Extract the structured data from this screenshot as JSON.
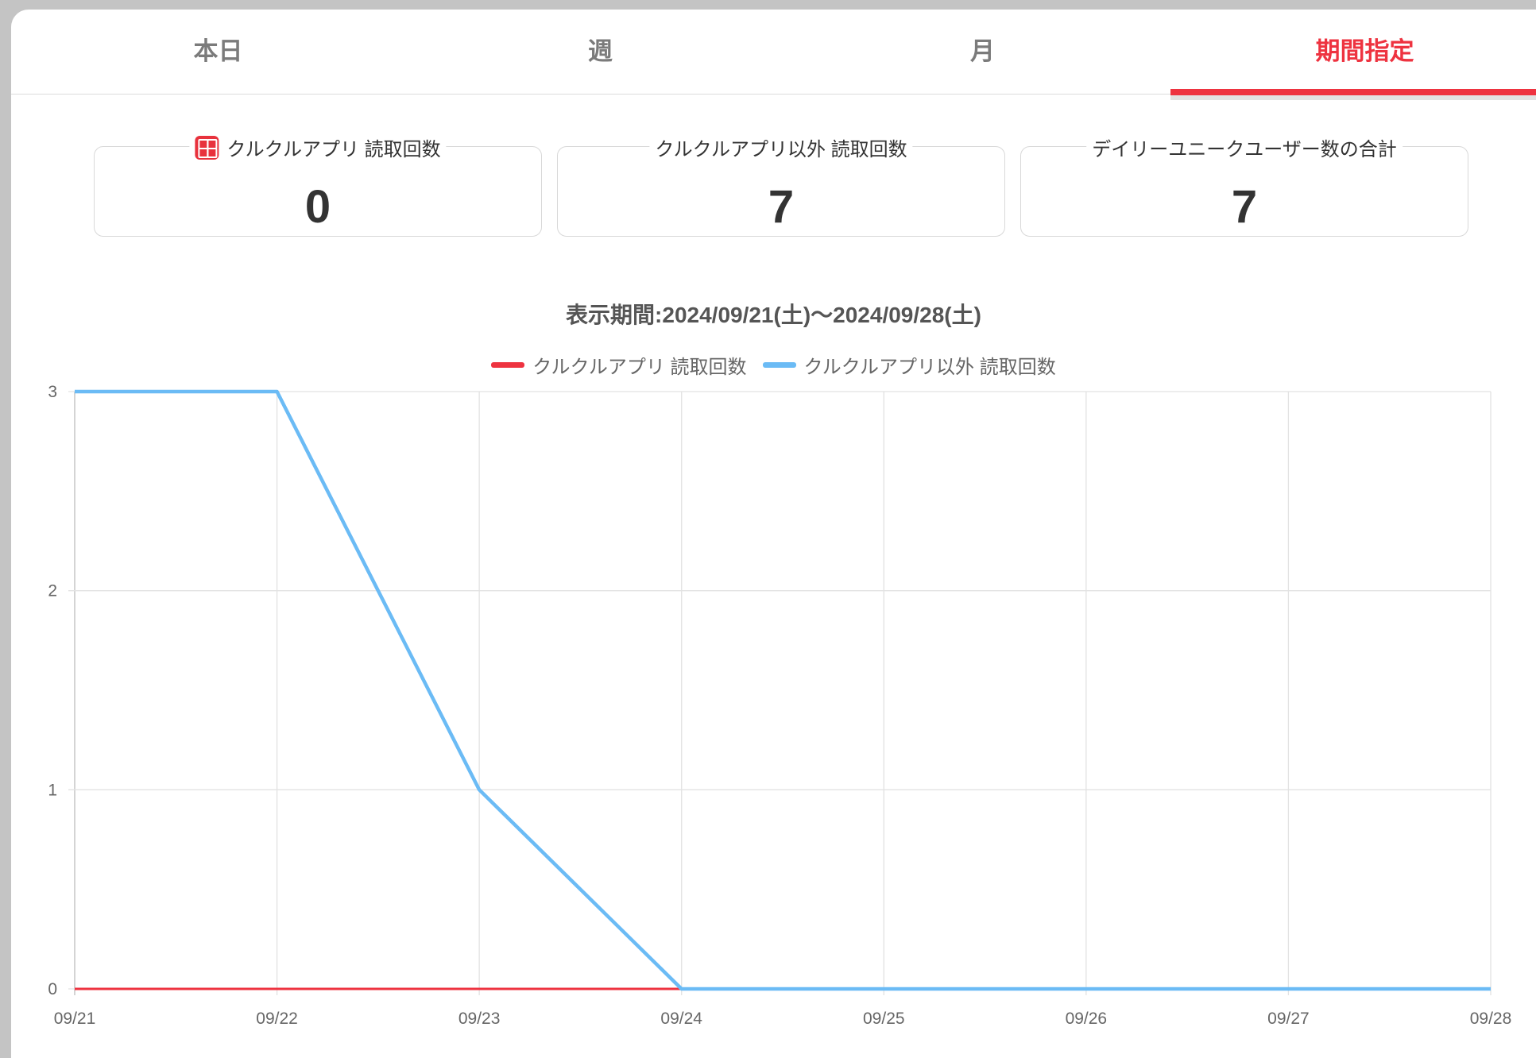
{
  "tabs": [
    {
      "label": "本日",
      "active": false
    },
    {
      "label": "週",
      "active": false
    },
    {
      "label": "月",
      "active": false
    },
    {
      "label": "期間指定",
      "active": true
    }
  ],
  "stats": [
    {
      "label": "クルクルアプリ 読取回数",
      "value": "0",
      "icon": "qr-app-icon"
    },
    {
      "label": "クルクルアプリ以外 読取回数",
      "value": "7"
    },
    {
      "label": "デイリーユニークユーザー数の合計",
      "value": "7"
    }
  ],
  "period_label": "表示期間:2024/09/21(土)〜2024/09/28(土)",
  "colors": {
    "accent": "#ee3340",
    "series_other": "#6bbbf5"
  },
  "chart_data": {
    "type": "line",
    "x": [
      "09/21",
      "09/22",
      "09/23",
      "09/24",
      "09/25",
      "09/26",
      "09/27",
      "09/28"
    ],
    "series": [
      {
        "name": "クルクルアプリ 読取回数",
        "values": [
          0,
          0,
          0,
          0,
          0,
          0,
          0,
          0
        ],
        "color": "#ee3340"
      },
      {
        "name": "クルクルアプリ以外 読取回数",
        "values": [
          3,
          3,
          1,
          0,
          0,
          0,
          0,
          0
        ],
        "color": "#6bbbf5"
      }
    ],
    "ylim": [
      0,
      3
    ],
    "yticks": [
      "0",
      "1",
      "2",
      "3"
    ],
    "grid": true,
    "legend": "top-center"
  }
}
